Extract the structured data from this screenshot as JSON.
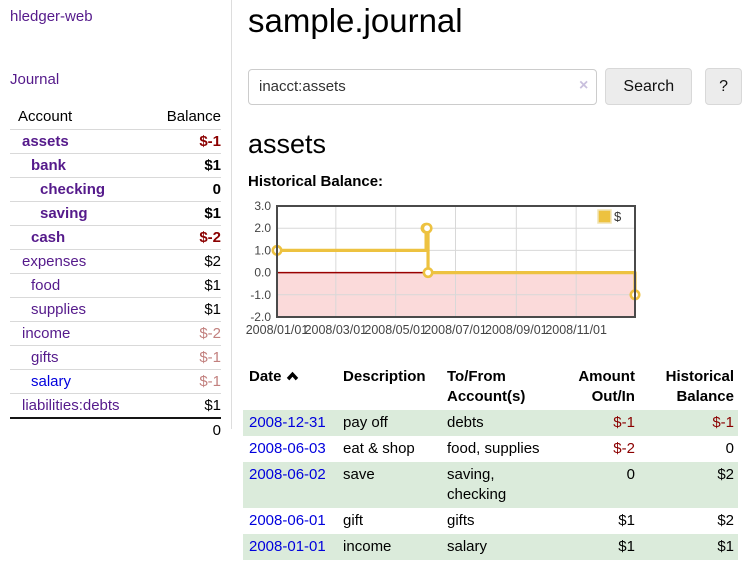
{
  "app": {
    "title": "hledger-web"
  },
  "sidebar": {
    "journal_link": "Journal",
    "accounts_table": {
      "headers": {
        "account": "Account",
        "balance": "Balance"
      },
      "rows": [
        {
          "name": "assets",
          "depth": 1,
          "bold": true,
          "balance": "$-1"
        },
        {
          "name": "bank",
          "depth": 2,
          "bold": true,
          "balance": "$1"
        },
        {
          "name": "checking",
          "depth": 3,
          "bold": true,
          "balance": "0"
        },
        {
          "name": "saving",
          "depth": 3,
          "bold": true,
          "balance": "$1"
        },
        {
          "name": "cash",
          "depth": 2,
          "bold": true,
          "balance": "$-2"
        },
        {
          "name": "expenses",
          "depth": 1,
          "bold": false,
          "balance": "$2"
        },
        {
          "name": "food",
          "depth": 2,
          "bold": false,
          "balance": "$1"
        },
        {
          "name": "supplies",
          "depth": 2,
          "bold": false,
          "balance": "$1"
        },
        {
          "name": "income",
          "depth": 1,
          "bold": false,
          "balance": "$-2"
        },
        {
          "name": "gifts",
          "depth": 2,
          "bold": false,
          "balance": "$-1"
        },
        {
          "name": "salary",
          "depth": 2,
          "bold": false,
          "balance": "$-1",
          "link_color": "blue"
        },
        {
          "name": "liabilities:debts",
          "depth": 1,
          "bold": false,
          "balance": "$1"
        }
      ],
      "total": "0"
    }
  },
  "main": {
    "title": "sample.journal",
    "search": {
      "value": "inacct:assets",
      "clear_icon": "×",
      "button_label": "Search",
      "help_label": "?"
    },
    "account_heading": "assets",
    "chart_heading": "Historical Balance:"
  },
  "chart_data": {
    "type": "line",
    "step": true,
    "title": "Historical Balance:",
    "x": [
      "2008-01-01",
      "2008-06-01",
      "2008-06-02",
      "2008-06-03",
      "2008-12-31"
    ],
    "series": [
      {
        "name": "$",
        "color": "#edc240",
        "values": [
          1,
          2,
          2,
          0,
          -1
        ]
      }
    ],
    "ylim": [
      -2,
      3
    ],
    "yticks": [
      "3.0",
      "2.0",
      "1.0",
      "0.0",
      "-1.0",
      "-2.0"
    ],
    "xtick_labels": [
      "2008/01/01",
      "2008/03/01",
      "2008/05/01",
      "2008/07/01",
      "2008/09/01",
      "2008/11/01"
    ],
    "xrange": [
      "2008-01-01",
      "2008-12-31"
    ],
    "grid": true,
    "legend_position": "top-right",
    "legend_label": "$",
    "negative_band_color": "#fbdada",
    "zero_line_color": "#990000"
  },
  "register": {
    "headers": {
      "date": "Date",
      "description": "Description",
      "accounts": "To/From Account(s)",
      "amount": "Amount Out/In",
      "balance": "Historical Balance"
    },
    "rows": [
      {
        "date": "2008-12-31",
        "description": "pay off",
        "accounts": "debts",
        "amount": "$-1",
        "balance": "$-1"
      },
      {
        "date": "2008-06-03",
        "description": "eat & shop",
        "accounts": "food, supplies",
        "amount": "$-2",
        "balance": "0"
      },
      {
        "date": "2008-06-02",
        "description": "save",
        "accounts": "saving, checking",
        "amount": "0",
        "balance": "$2"
      },
      {
        "date": "2008-06-01",
        "description": "gift",
        "accounts": "gifts",
        "amount": "$1",
        "balance": "$2"
      },
      {
        "date": "2008-01-01",
        "description": "income",
        "accounts": "salary",
        "amount": "$1",
        "balance": "$1"
      }
    ]
  },
  "colors": {
    "link_purple": "#551a8b",
    "link_blue": "#0000dd",
    "negative": "#8b0000",
    "negative_muted": "#c2807e",
    "row_green": "#dbebdb",
    "chart_line": "#edc240",
    "chart_negative_band": "#fbdada",
    "chart_zero_line": "#990000"
  }
}
